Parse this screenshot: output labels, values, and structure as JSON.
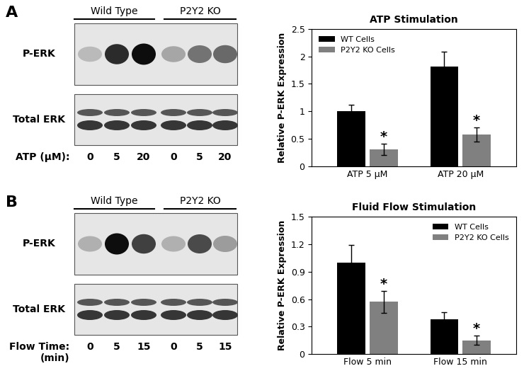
{
  "chart_data": [
    {
      "type": "bar",
      "title": "ATP Stimulation",
      "y_label": "Relative P-ERK Expression",
      "categories": [
        "ATP 5 μM",
        "ATP 20 μM"
      ],
      "series": [
        {
          "name": "WT Cells",
          "color": "#000000",
          "values": [
            1.0,
            1.82
          ],
          "error": [
            0.12,
            0.27
          ]
        },
        {
          "name": "P2Y2 KO Cells",
          "color": "#808080",
          "values": [
            0.31,
            0.58
          ],
          "error": [
            0.1,
            0.13
          ]
        }
      ],
      "ylim": [
        0,
        2.5
      ],
      "yticks": [
        0,
        0.5,
        1,
        1.5,
        2,
        2.5
      ],
      "legend": "upper left",
      "annotations": [
        {
          "text": "*",
          "series": "P2Y2 KO Cells",
          "category": "ATP 5 μM"
        },
        {
          "text": "*",
          "series": "P2Y2 KO Cells",
          "category": "ATP 20 μM"
        }
      ]
    },
    {
      "type": "bar",
      "title": "Fluid Flow Stimulation",
      "y_label": "Relative P-ERK Expression",
      "categories": [
        "Flow 5 min",
        "Flow 15 min"
      ],
      "series": [
        {
          "name": "WT Cells",
          "color": "#000000",
          "values": [
            1.0,
            0.38
          ],
          "error": [
            0.19,
            0.08
          ]
        },
        {
          "name": "P2Y2 KO Cells",
          "color": "#808080",
          "values": [
            0.57,
            0.15
          ],
          "error": [
            0.12,
            0.05
          ]
        }
      ],
      "ylim": [
        0,
        1.5
      ],
      "yticks": [
        0,
        0.3,
        0.6,
        0.9,
        1.2,
        1.5
      ],
      "legend": "upper right",
      "annotations": [
        {
          "text": "*",
          "series": "P2Y2 KO Cells",
          "category": "Flow 5 min"
        },
        {
          "text": "*",
          "series": "P2Y2 KO Cells",
          "category": "Flow 15 min"
        }
      ]
    }
  ],
  "blots": [
    {
      "label": "A",
      "groups": [
        "Wild Type",
        "P2Y2 KO"
      ],
      "rows": [
        "P-ERK",
        "Total ERK"
      ],
      "condition_label": [
        "ATP (μM):"
      ],
      "lanes": [
        "0",
        "5",
        "20",
        "0",
        "5",
        "20"
      ],
      "p_erk_intensity": [
        0.15,
        0.85,
        1.0,
        0.25,
        0.5,
        0.55
      ],
      "total_erk_intensity": [
        0.8,
        0.8,
        0.8,
        0.8,
        0.8,
        0.8
      ]
    },
    {
      "label": "B",
      "groups": [
        "Wild Type",
        "P2Y2 KO"
      ],
      "rows": [
        "P-ERK",
        "Total ERK"
      ],
      "condition_label": [
        "Flow Time:",
        "(min)"
      ],
      "lanes": [
        "0",
        "5",
        "15",
        "0",
        "5",
        "15"
      ],
      "p_erk_intensity": [
        0.2,
        1.0,
        0.75,
        0.2,
        0.7,
        0.3
      ],
      "total_erk_intensity": [
        0.8,
        0.8,
        0.8,
        0.8,
        0.8,
        0.8
      ]
    }
  ]
}
